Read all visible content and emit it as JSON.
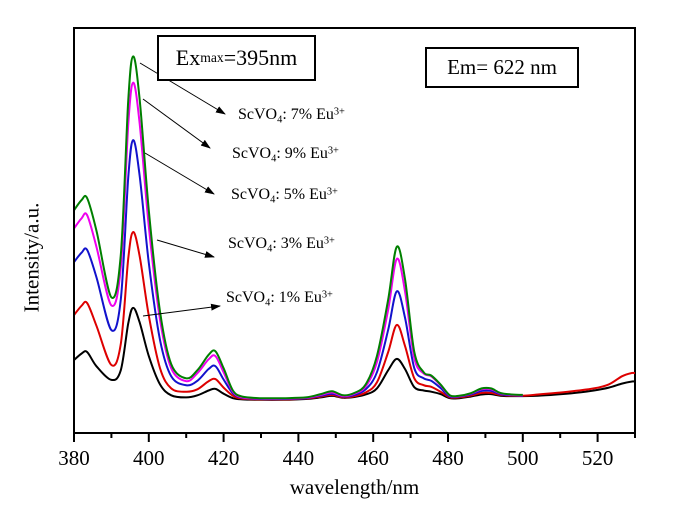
{
  "annotations": {
    "ex_box": {
      "prefix": "Ex",
      "sub": "max",
      "suffix": "=395nm"
    },
    "em_box": {
      "text": "Em= 622 nm"
    }
  },
  "axes": {
    "x_label": "wavelength/nm",
    "y_label": "Intensity/a.u."
  },
  "series_labels": [
    {
      "prefix": "ScVO",
      "sub": "4",
      "mid": ": 7% Eu",
      "sup": "3+"
    },
    {
      "prefix": "ScVO",
      "sub": "4",
      "mid": ": 9% Eu",
      "sup": "3+"
    },
    {
      "prefix": "ScVO",
      "sub": "4",
      "mid": ": 5% Eu",
      "sup": "3+"
    },
    {
      "prefix": "ScVO",
      "sub": "4",
      "mid": ": 3% Eu",
      "sup": "3+"
    },
    {
      "prefix": "ScVO",
      "sub": "4",
      "mid": ": 1% Eu",
      "sup": "3+"
    }
  ],
  "chart_data": {
    "type": "line",
    "title": "",
    "xlabel": "wavelength/nm",
    "ylabel": "Intensity/a.u.",
    "x_range": [
      380,
      530
    ],
    "y_range": [
      0,
      100
    ],
    "y_units": "arbitrary (a.u., unlabeled axis)",
    "x_major_ticks": [
      380,
      400,
      420,
      440,
      460,
      480,
      500,
      520
    ],
    "x_minor_ticks": [
      390,
      410,
      430,
      450,
      470,
      490,
      510,
      530
    ],
    "grid": false,
    "legend_position": "annotated-arrows",
    "annotations_text": [
      "Ex_max=395nm",
      "Em= 622 nm"
    ],
    "peaks_nm": {
      "shoulder": 383,
      "main": 395.8,
      "minor": 417.8,
      "secondary": 466.3,
      "secondary_shoulder": 474.5
    },
    "series": [
      {
        "name": "ScVO4: 7% Eu3+",
        "color": "#008000",
        "x": [
          380,
          382,
          383.5,
          386,
          390,
          392.5,
          394.5,
          395.8,
          397.5,
          400,
          403,
          406,
          410,
          413,
          416,
          417.8,
          420,
          422.5,
          425,
          430,
          436,
          442,
          446,
          449,
          452,
          455,
          458,
          461,
          464,
          466.3,
          468.5,
          471,
          473.5,
          475.5,
          478,
          480.5,
          483,
          486,
          489,
          491.5,
          494,
          497,
          500
        ],
        "y": [
          55,
          57.5,
          58,
          50,
          33.5,
          44,
          82,
          93,
          83,
          55,
          30,
          17,
          13.5,
          15.5,
          19.3,
          20.2,
          16,
          10.5,
          9,
          8.6,
          8.6,
          8.8,
          9.6,
          10.3,
          9.3,
          9.9,
          12,
          19,
          33,
          46,
          38,
          20,
          15,
          14.2,
          12,
          9.3,
          9.2,
          9.8,
          11,
          11,
          9.9,
          9.5,
          9.4
        ]
      },
      {
        "name": "ScVO4: 9% Eu3+",
        "color": "#ee00ee",
        "x": [
          380,
          382,
          383.5,
          386,
          390,
          392.5,
          394.5,
          395.8,
          397.5,
          400,
          403,
          406,
          410,
          413,
          416,
          417.8,
          420,
          422.5,
          425,
          430,
          436,
          442,
          446,
          449,
          452,
          455,
          458,
          461,
          464,
          466.3,
          468.5,
          471,
          473.5,
          475.5,
          478,
          480.5,
          483,
          486,
          489,
          491.5,
          494,
          497,
          500
        ],
        "y": [
          50.5,
          53,
          53.8,
          46,
          31.5,
          41,
          76,
          86.5,
          77,
          51,
          28,
          16,
          12.8,
          14.8,
          18.2,
          19,
          15,
          10.2,
          8.8,
          8.5,
          8.5,
          8.7,
          9.4,
          10,
          9.1,
          9.7,
          11.5,
          17.5,
          30.5,
          43,
          35,
          18.5,
          14.7,
          14,
          11.8,
          9.2,
          9.1,
          9.7,
          10.8,
          10.8,
          9.8,
          9.4,
          9.3
        ]
      },
      {
        "name": "ScVO4: 5% Eu3+",
        "color": "#1212cc",
        "x": [
          380,
          382,
          383.5,
          386,
          390,
          392.5,
          394.5,
          395.8,
          397.5,
          400,
          403,
          406,
          410,
          413,
          416,
          417.8,
          420,
          422.5,
          425,
          430,
          436,
          442,
          446,
          449,
          452,
          455,
          458,
          461,
          464,
          466.3,
          468.5,
          471,
          473.5,
          475.5,
          478,
          480.5,
          483,
          486,
          489,
          491.5,
          494,
          497,
          500
        ],
        "y": [
          42.2,
          44.5,
          45.2,
          38.5,
          25.4,
          33,
          63,
          72.3,
          64,
          42,
          23,
          14,
          11.8,
          12.9,
          15.8,
          16.5,
          13.2,
          9.8,
          8.7,
          8.4,
          8.4,
          8.6,
          9.2,
          9.7,
          9,
          9.4,
          10.8,
          15,
          25.5,
          35,
          28.5,
          16,
          13.5,
          12.9,
          11.1,
          9,
          9,
          9.5,
          10.4,
          10.4,
          9.6,
          9.3,
          9.2
        ]
      },
      {
        "name": "ScVO4: 3% Eu3+",
        "color": "#dd0000",
        "x": [
          380,
          382,
          383.5,
          386,
          390,
          392.5,
          394.5,
          395.8,
          397.5,
          400,
          403,
          406,
          410,
          413,
          416,
          417.8,
          420,
          422.5,
          425,
          430,
          436,
          442,
          446,
          449,
          452,
          455,
          458,
          461,
          464,
          466.3,
          468.5,
          471,
          473.5,
          475.5,
          478,
          480.5,
          483,
          486,
          489,
          491.5,
          494,
          497,
          500,
          504,
          509,
          514,
          519,
          523,
          526.5,
          529,
          530
        ],
        "y": [
          29.1,
          31.4,
          32.1,
          26.5,
          16.8,
          22,
          43,
          49.6,
          44,
          29,
          16,
          11,
          10.2,
          10.8,
          12.8,
          13.3,
          11.2,
          9.2,
          8.5,
          8.3,
          8.3,
          8.5,
          9,
          9.4,
          8.8,
          9.1,
          10,
          12.5,
          20,
          26.7,
          21.5,
          13.5,
          11.8,
          11.4,
          10.2,
          8.8,
          8.8,
          9.2,
          9.9,
          9.9,
          9.4,
          9.2,
          9.2,
          9.5,
          9.9,
          10.4,
          11,
          12,
          14,
          14.8,
          14.8
        ]
      },
      {
        "name": "ScVO4: 1% Eu3+",
        "color": "#000000",
        "x": [
          380,
          382,
          383.5,
          386,
          390,
          392.5,
          394.5,
          395.8,
          397.5,
          400,
          403,
          406,
          410,
          413,
          416,
          417.8,
          420,
          422.5,
          425,
          430,
          436,
          442,
          446,
          449,
          452,
          455,
          458,
          461,
          464,
          466.3,
          468.5,
          471,
          473.5,
          475.5,
          478,
          480.5,
          483,
          486,
          489,
          491.5,
          494,
          497,
          500,
          504,
          509,
          514,
          519,
          523,
          526.5,
          529,
          530
        ],
        "y": [
          18,
          19.6,
          20,
          16.5,
          13.1,
          15.5,
          27,
          30.9,
          27.5,
          19,
          12,
          9.3,
          8.8,
          9.3,
          10.5,
          10.9,
          9.7,
          8.6,
          8.3,
          8.2,
          8.2,
          8.4,
          8.8,
          9.2,
          8.7,
          8.9,
          9.5,
          11,
          15.5,
          18.3,
          15.8,
          11.3,
          10.5,
          10.2,
          9.6,
          8.6,
          8.6,
          9,
          9.5,
          9.6,
          9.2,
          9.1,
          9.1,
          9.2,
          9.5,
          9.9,
          10.5,
          11.2,
          12.2,
          12.7,
          12.7
        ]
      }
    ]
  }
}
